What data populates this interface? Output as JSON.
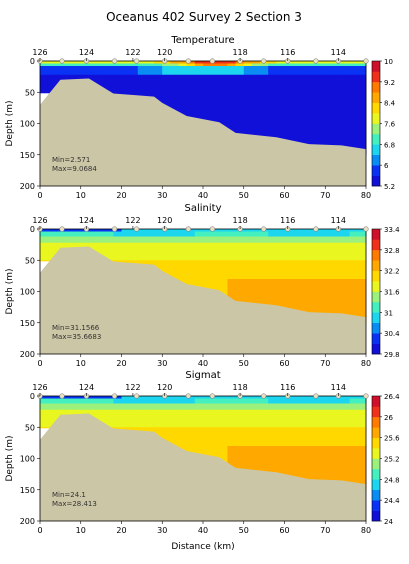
{
  "title": "Oceanus 402 Survey 2 Section 3",
  "xlabel": "Distance (km)",
  "chart_data": [
    {
      "type": "heatmap",
      "title": "Temperature",
      "ylabel": "Depth (m)",
      "xlim": [
        0,
        80
      ],
      "ylim": [
        200,
        0
      ],
      "x_ticks": [
        0,
        10,
        20,
        30,
        40,
        50,
        60,
        70,
        80
      ],
      "y_ticks": [
        0,
        50,
        100,
        150,
        200
      ],
      "top_axis_ticks": [
        "126",
        "124",
        "122",
        "120",
        "118",
        "116",
        "114"
      ],
      "top_axis_positions_km": [
        0,
        11.4,
        22.8,
        30.6,
        49.1,
        60.8,
        73.2
      ],
      "colorbar": {
        "min": 5.2,
        "max": 10,
        "ticks": [
          "10",
          "9.2",
          "8.4",
          "7.6",
          "6.8",
          "6",
          "5.2"
        ]
      },
      "stats": {
        "min": "Min=2.571",
        "max": "Max=9.0684"
      }
    },
    {
      "type": "heatmap",
      "title": "Salinity",
      "ylabel": "Depth (m)",
      "xlim": [
        0,
        80
      ],
      "ylim": [
        200,
        0
      ],
      "x_ticks": [
        0,
        10,
        20,
        30,
        40,
        50,
        60,
        70,
        80
      ],
      "y_ticks": [
        0,
        50,
        100,
        150,
        200
      ],
      "top_axis_ticks": [
        "126",
        "124",
        "122",
        "120",
        "118",
        "116",
        "114"
      ],
      "top_axis_positions_km": [
        0,
        11.4,
        22.8,
        30.6,
        49.1,
        60.8,
        73.2
      ],
      "colorbar": {
        "min": 29.8,
        "max": 33.4,
        "ticks": [
          "33.4",
          "32.8",
          "32.2",
          "31.6",
          "31",
          "30.4",
          "29.8"
        ]
      },
      "stats": {
        "min": "Min=31.1566",
        "max": "Max=35.6683"
      }
    },
    {
      "type": "heatmap",
      "title": "Sigmat",
      "ylabel": "Depth (m)",
      "xlim": [
        0,
        80
      ],
      "ylim": [
        200,
        0
      ],
      "x_ticks": [
        0,
        10,
        20,
        30,
        40,
        50,
        60,
        70,
        80
      ],
      "y_ticks": [
        0,
        50,
        100,
        150,
        200
      ],
      "top_axis_ticks": [
        "126",
        "124",
        "122",
        "120",
        "118",
        "116",
        "114"
      ],
      "top_axis_positions_km": [
        0,
        11.4,
        22.8,
        30.6,
        49.1,
        60.8,
        73.2
      ],
      "colorbar": {
        "min": 24,
        "max": 26.4,
        "ticks": [
          "26.4",
          "26",
          "25.6",
          "25.2",
          "24.8",
          "24.4",
          "24"
        ]
      },
      "stats": {
        "min": "Min=24.1",
        "max": "Max=28.413"
      }
    }
  ],
  "station_positions_km": [
    0,
    5.4,
    11.4,
    18.3,
    23.7,
    30.6,
    36.4,
    42.3,
    49.1,
    54.9,
    60.8,
    67.7,
    73.2,
    80
  ],
  "bottom_profile": [
    [
      0,
      70
    ],
    [
      5,
      30
    ],
    [
      12,
      28
    ],
    [
      18,
      52
    ],
    [
      28,
      57
    ],
    [
      30,
      67
    ],
    [
      36,
      88
    ],
    [
      44,
      98
    ],
    [
      48,
      115
    ],
    [
      58,
      122
    ],
    [
      66,
      133
    ],
    [
      74,
      135
    ],
    [
      80,
      141
    ]
  ],
  "sample_mask_bottom": [
    [
      0,
      51
    ],
    [
      11,
      50
    ],
    [
      11,
      60
    ],
    [
      18,
      60
    ],
    [
      18,
      83
    ],
    [
      23,
      83
    ],
    [
      23,
      125
    ],
    [
      28,
      125
    ],
    [
      28,
      145
    ],
    [
      36,
      145
    ],
    [
      36,
      125
    ],
    [
      49,
      125
    ],
    [
      49,
      155
    ],
    [
      80,
      155
    ]
  ],
  "colors": {
    "land": "#cbc6a6",
    "colormap": [
      "#1010d8",
      "#0a32f5",
      "#0a8cf5",
      "#1cd6f0",
      "#44f0c0",
      "#9cf07c",
      "#e9f61f",
      "#ffd800",
      "#ffa900",
      "#ff7a00",
      "#f03018",
      "#d0102a"
    ]
  }
}
